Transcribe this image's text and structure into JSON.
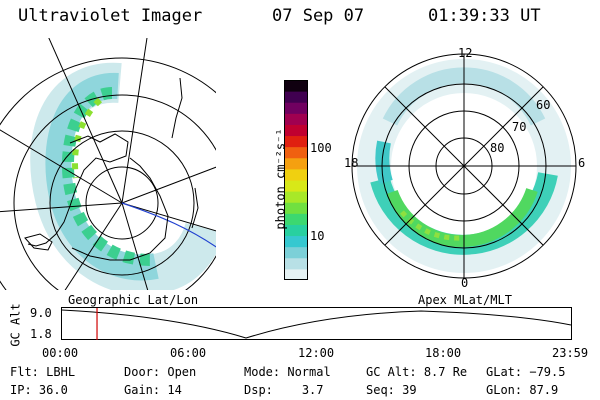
{
  "header": {
    "instrument": "Ultraviolet Imager",
    "date": "07 Sep 07",
    "time": "01:39:33 UT"
  },
  "left_map": {
    "caption": "Geographic Lat/Lon"
  },
  "right_map": {
    "caption": "Apex MLat/MLT",
    "mlt_labels": {
      "top": "12",
      "bottom": "0",
      "left": "18",
      "right": "6"
    },
    "lat_labels": [
      "60",
      "70",
      "80"
    ]
  },
  "colorbar": {
    "unit_label": "photon cm⁻²s⁻¹",
    "ticks": [
      "100",
      "10"
    ],
    "colors": [
      "#e6f2f4",
      "#b8e0e6",
      "#7cd0d8",
      "#36c8d0",
      "#28d0a0",
      "#3cd870",
      "#70e040",
      "#a8e828",
      "#d8e818",
      "#f0d010",
      "#f5a010",
      "#f06010",
      "#e02010",
      "#c00030",
      "#a00050",
      "#700060",
      "#400050",
      "#100010"
    ]
  },
  "altitude_plot": {
    "ylabel": "GC Alt",
    "y_ticks": [
      "9.0",
      "1.8"
    ],
    "x_ticks": [
      "00:00",
      "06:00",
      "12:00",
      "18:00",
      "23:59"
    ],
    "marker_time": "01:39",
    "marker_color": "#d00000"
  },
  "status": {
    "row1": [
      {
        "label": "Flt:",
        "value": "LBHL"
      },
      {
        "label": "Door:",
        "value": "Open"
      },
      {
        "label": "Mode:",
        "value": "Normal"
      },
      {
        "label": "GC Alt:",
        "value": "8.7 Re"
      },
      {
        "label": "GLat:",
        "value": "−79.5"
      }
    ],
    "row2": [
      {
        "label": "IP:",
        "value": "36.0"
      },
      {
        "label": "Gain:",
        "value": "14"
      },
      {
        "label": "Dsp:",
        "value": "3.7"
      },
      {
        "label": "Seq:",
        "value": "39"
      },
      {
        "label": "GLon:",
        "value": "87.9"
      }
    ]
  }
}
